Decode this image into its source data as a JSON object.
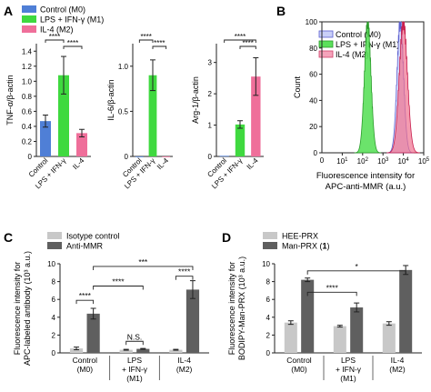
{
  "panels": {
    "A": "A",
    "B": "B",
    "C": "C",
    "D": "D"
  },
  "colors": {
    "control": "#4f7fd6",
    "m1": "#3fd93f",
    "m2": "#ef6f9a",
    "isotype": "#c8c8c8",
    "anti": "#5f5f5f",
    "axis": "#222222"
  },
  "panelA_legend": [
    "Control (M0)",
    "LPS + IFN-γ (M1)",
    "IL-4 (M2)"
  ],
  "panelB_legend": [
    "Control (M0)",
    "LPS + IFN-γ (M1)",
    "IL-4 (M2)"
  ],
  "panelC_legend": [
    "Isotype control",
    "Anti-MMR"
  ],
  "panelD_legend_items": [
    {
      "label": "HEE-PRX",
      "suffix": ""
    },
    {
      "label": "Man-PRX (",
      "suffix": "1",
      "close": ")"
    }
  ],
  "chart_data": [
    {
      "type": "bar",
      "panel": "A",
      "categories": [
        "Control",
        "LPS + IFN-γ",
        "IL-4"
      ],
      "values": [
        0.47,
        1.08,
        0.31
      ],
      "errors": [
        0.08,
        0.25,
        0.05
      ],
      "ylabel": "TNF-α/β-actin",
      "ylim": [
        0,
        1.5
      ],
      "yticks": [
        "0",
        "0.2",
        "0.4",
        "0.6",
        "0.8",
        "1.0",
        "1.2",
        "1.4"
      ],
      "significance": [
        {
          "from": 0,
          "to": 1,
          "label": "****"
        },
        {
          "from": 1,
          "to": 2,
          "label": "****"
        }
      ]
    },
    {
      "type": "bar",
      "panel": "A",
      "categories": [
        "Control",
        "LPS + IFN-γ",
        "IL-4"
      ],
      "values": [
        0.0,
        0.9,
        0.0
      ],
      "errors": [
        0.0,
        0.17,
        0.0
      ],
      "ylabel": "IL-6/β-actin",
      "ylim": [
        0,
        1.25
      ],
      "yticks": [
        "0",
        "0.5",
        "1.0"
      ],
      "significance": [
        {
          "from": 0,
          "to": 1,
          "label": "****"
        },
        {
          "from": 1,
          "to": 2,
          "label": "****"
        }
      ]
    },
    {
      "type": "bar",
      "panel": "A",
      "categories": [
        "Control",
        "LPS + IFN-γ",
        "IL-4"
      ],
      "values": [
        0.02,
        1.02,
        2.55
      ],
      "errors": [
        0.0,
        0.12,
        0.6
      ],
      "ylabel": "Arg-1/β-actin",
      "ylim": [
        0,
        3.6
      ],
      "yticks": [
        "0",
        "1",
        "2",
        "3"
      ],
      "significance": [
        {
          "from": 0,
          "to": 2,
          "label": "****"
        },
        {
          "from": 1,
          "to": 2,
          "label": "****"
        }
      ]
    },
    {
      "type": "area",
      "panel": "B",
      "xlabel": "Fluorescence intensity for",
      "xlabel2": "APC-anti-MMR (a.u.)",
      "ylabel": "Count",
      "xscale": "log",
      "xlim": [
        1,
        100000
      ],
      "ylim": [
        0,
        100
      ],
      "xtick_exponents": [
        "1",
        "2",
        "3",
        "4",
        "5"
      ],
      "xtick_base": "10",
      "xtick_zero": "0",
      "yticks": [
        "0",
        "20",
        "40",
        "60",
        "80",
        "100"
      ],
      "series": [
        {
          "name": "Control (M0)",
          "log_center": 3.85,
          "log_width": 0.16,
          "peak": 100
        },
        {
          "name": "LPS + IFN-γ (M1)",
          "log_center": 2.25,
          "log_width": 0.16,
          "peak": 100
        },
        {
          "name": "IL-4 (M2)",
          "log_center": 4.0,
          "log_width": 0.2,
          "peak": 100
        }
      ]
    },
    {
      "type": "bar",
      "panel": "C",
      "categories": [
        "Control",
        "LPS",
        "IL-4"
      ],
      "categories_line2": [
        "(M0)",
        "+ IFN-γ",
        "(M2)"
      ],
      "categories_line3": [
        "",
        "(M1)",
        ""
      ],
      "ylabel": "Fluorescence intensity for",
      "ylabel2": "APC-labeled antibody (10³ a.u.)",
      "ylim": [
        0,
        10
      ],
      "yticks": [
        "0",
        "2",
        "4",
        "6",
        "8",
        "10"
      ],
      "series": [
        {
          "name": "Isotype control",
          "values": [
            0.5,
            0.35,
            0.35
          ],
          "errors": [
            0.15,
            0.05,
            0.05
          ]
        },
        {
          "name": "Anti-MMR",
          "values": [
            4.4,
            0.45,
            7.1
          ],
          "errors": [
            0.6,
            0.05,
            1.0
          ]
        }
      ],
      "significance": [
        {
          "label": "****",
          "g1": 0,
          "b1": 0,
          "g2": 0,
          "b2": 1,
          "y": 5.9
        },
        {
          "label": "N.S.",
          "g1": 1,
          "b1": 0,
          "g2": 1,
          "b2": 1,
          "y": 1.3
        },
        {
          "label": "****",
          "g1": 2,
          "b1": 0,
          "g2": 2,
          "b2": 1,
          "y": 8.6
        },
        {
          "label": "****",
          "g1": 0,
          "b1": 1,
          "g2": 1,
          "b2": 1,
          "y": 7.5
        },
        {
          "label": "***",
          "g1": 0,
          "b1": 1,
          "g2": 2,
          "b2": 1,
          "y": 9.7
        }
      ]
    },
    {
      "type": "bar",
      "panel": "D",
      "categories": [
        "Control",
        "LPS",
        "IL-4"
      ],
      "categories_line2": [
        "(M0)",
        "+ IFN-γ",
        "(M2)"
      ],
      "categories_line3": [
        "",
        "(M1)",
        ""
      ],
      "ylabel": "Fluorescence intensity for",
      "ylabel2": "BODIPY-Man-PRX (10³ a.u.)",
      "ylim": [
        0,
        10
      ],
      "yticks": [
        "0",
        "2",
        "4",
        "6",
        "8",
        "10"
      ],
      "series": [
        {
          "name": "HEE-PRX",
          "values": [
            3.4,
            3.0,
            3.3
          ],
          "errors": [
            0.2,
            0.1,
            0.2
          ]
        },
        {
          "name": "Man-PRX (1)",
          "values": [
            8.2,
            5.1,
            9.3
          ],
          "errors": [
            0.2,
            0.5,
            0.5
          ]
        }
      ],
      "significance": [
        {
          "label": "****",
          "g1": 0,
          "b1": 1,
          "g2": 1,
          "b2": 1,
          "y": 6.8
        },
        {
          "label": "*",
          "g1": 0,
          "b1": 1,
          "g2": 2,
          "b2": 1,
          "y": 9.2
        }
      ]
    }
  ]
}
